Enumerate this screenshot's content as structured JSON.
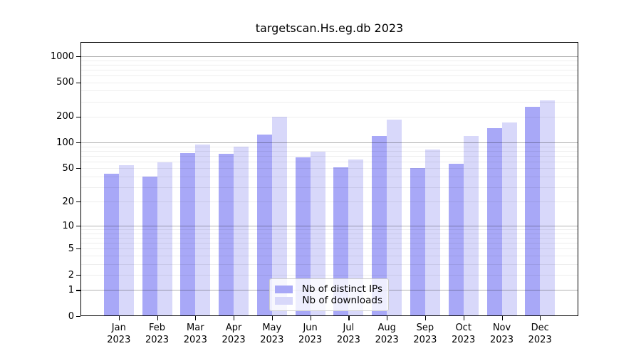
{
  "title": "targetscan.Hs.eg.db 2023",
  "chart_data": {
    "type": "bar",
    "categories": [
      "Jan",
      "Feb",
      "Mar",
      "Apr",
      "May",
      "Jun",
      "Jul",
      "Aug",
      "Sep",
      "Oct",
      "Nov",
      "Dec"
    ],
    "category_year": "2023",
    "series": [
      {
        "name": "Nb of distinct IPs",
        "color": "#a8a8f7",
        "values": [
          43,
          40,
          76,
          74,
          124,
          67,
          51,
          120,
          50,
          57,
          148,
          259
        ]
      },
      {
        "name": "Nb of downloads",
        "color": "#d8d8fa",
        "values": [
          54,
          59,
          95,
          89,
          199,
          78,
          63,
          185,
          83,
          120,
          172,
          308
        ]
      }
    ],
    "y_ticks": [
      0,
      1,
      2,
      5,
      10,
      20,
      50,
      100,
      200,
      500,
      1000
    ],
    "y_scale": "log(1+x)",
    "ylim": [
      0,
      1500
    ],
    "grid": "major and minor horizontal gridlines, minors at 2-9 per decade",
    "legend_position": "inside bottom-center",
    "xlabel": "",
    "ylabel": ""
  }
}
